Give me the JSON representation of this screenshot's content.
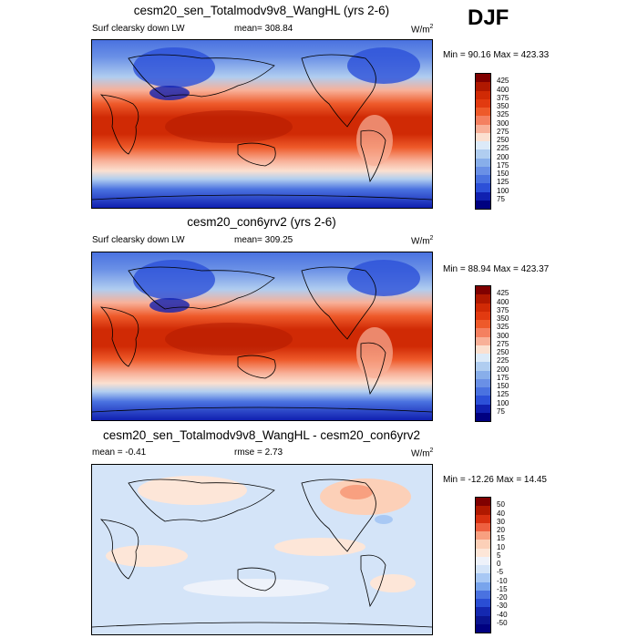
{
  "season": "DJF",
  "panels": [
    {
      "title": "cesm20_sen_Totalmodv9v8_WangHL (yrs 2-6)",
      "left_label": "Surf clearsky down LW",
      "center_label": "mean= 308.84",
      "units": "W/m",
      "units_sup": "2",
      "minmax": "Min =  90.16 Max = 423.33",
      "colorbar_labels": [
        "425",
        "400",
        "375",
        "350",
        "325",
        "300",
        "275",
        "250",
        "225",
        "200",
        "175",
        "150",
        "125",
        "100",
        "75"
      ]
    },
    {
      "title": "cesm20_con6yrv2 (yrs 2-6)",
      "left_label": "Surf clearsky down LW",
      "center_label": "mean= 309.25",
      "units": "W/m",
      "units_sup": "2",
      "minmax": "Min =  88.94 Max = 423.37",
      "colorbar_labels": [
        "425",
        "400",
        "375",
        "350",
        "325",
        "300",
        "275",
        "250",
        "225",
        "200",
        "175",
        "150",
        "125",
        "100",
        "75"
      ]
    },
    {
      "title": "cesm20_sen_Totalmodv9v8_WangHL - cesm20_con6yrv2",
      "left_label": "mean =  -0.41",
      "center_label": "rmse =   2.73",
      "units": "W/m",
      "units_sup": "2",
      "minmax": "Min = -12.26 Max =  14.45",
      "colorbar_labels": [
        "50",
        "40",
        "30",
        "20",
        "15",
        "10",
        "5",
        "0",
        "-5",
        "-10",
        "-15",
        "-20",
        "-30",
        "-40",
        "-50"
      ]
    }
  ],
  "colors": {
    "abs_scale": [
      "#800000",
      "#b01800",
      "#d02a05",
      "#e23a10",
      "#ee5a2a",
      "#f48060",
      "#f8b098",
      "#fbe0d0",
      "#dceaf8",
      "#b0cdf0",
      "#88aeea",
      "#6a90e6",
      "#4a72e0",
      "#2c50d8",
      "#1020b0",
      "#000080"
    ],
    "diff_scale": [
      "#800000",
      "#b01800",
      "#d83010",
      "#ee6040",
      "#f8a080",
      "#fcd0b8",
      "#fde6d8",
      "#eef2fa",
      "#d4e4f8",
      "#a8c8f4",
      "#78a4ec",
      "#4a72e0",
      "#2a4ed4",
      "#1428b0",
      "#0a1490",
      "#000080"
    ]
  },
  "icons": [
    "map-projection-cylindrical"
  ]
}
